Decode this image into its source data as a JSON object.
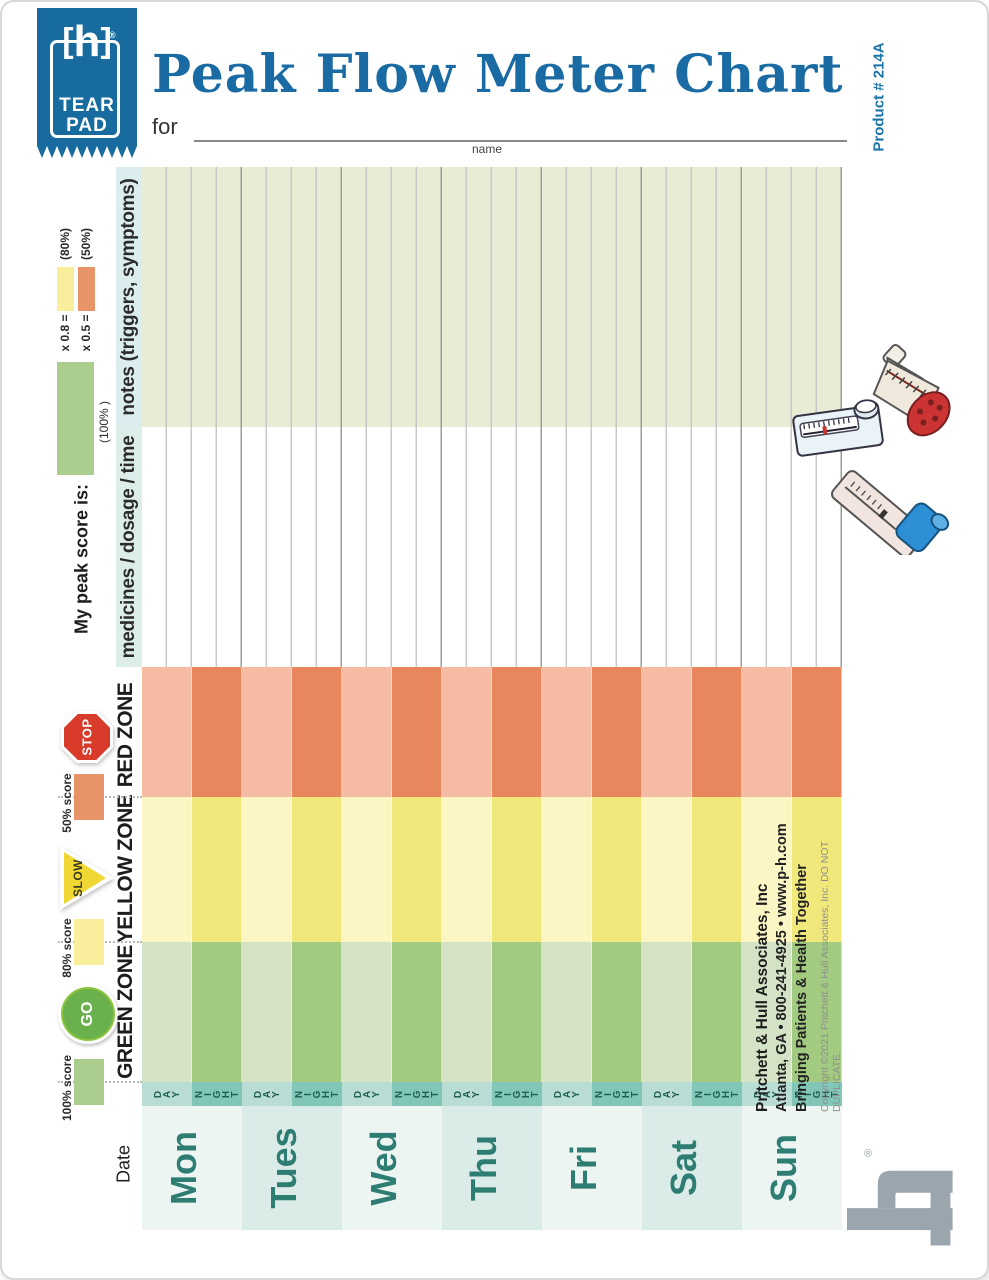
{
  "header": {
    "logo": {
      "mark": "h",
      "bracket_left": "[",
      "bracket_right": "]",
      "registered": "®",
      "word1": "TEAR",
      "word2": "PAD"
    },
    "title": "Peak Flow Meter Chart",
    "for_label": "for",
    "name_label": "name",
    "product_code": "Product # 214A"
  },
  "scale": {
    "peak_score_label": "My peak score is:",
    "hundred_pct_label": "(100% )",
    "hundred_swatch_color": "#abce8f",
    "formulas": [
      {
        "expr": "x 0.8 =",
        "pct": "(80%)",
        "color": "#f8ee9b"
      },
      {
        "expr": "x 0.5 =",
        "pct": "(50%)",
        "color": "#e79468"
      }
    ]
  },
  "chart": {
    "row_headers": {
      "notes": "notes (triggers, symptoms)",
      "medicines": "medicines / dosage / time"
    },
    "zones": [
      {
        "label": "RED ZONE",
        "icon_label": "STOP",
        "score_label": "50% score",
        "day_color": "#f6bba3",
        "night_color": "#e8875e",
        "swatch_color": "#e79468"
      },
      {
        "label": "YELLOW ZONE",
        "icon_label": "SLOW",
        "score_label": "80% score",
        "day_color": "#fbf6c4",
        "night_color": "#f1e87c",
        "swatch_color": "#f8ee9b"
      },
      {
        "label": "GREEN ZONE",
        "icon_label": "GO",
        "score_label": "100% score",
        "day_color": "#d4e3c6",
        "night_color": "#a2cb81",
        "swatch_color": "#abce8f"
      }
    ],
    "subcolumns": [
      "DAY",
      "NIGHT"
    ],
    "days": [
      "Mon",
      "Tues",
      "Wed",
      "Thu",
      "Fri",
      "Sat",
      "Sun"
    ],
    "date_label": "Date",
    "colors": {
      "notes_band": "#e9ecd5",
      "dn_day": "#b9dcd4",
      "dn_night": "#81c6b7",
      "day_cell_light": "#ecf5f2",
      "day_cell_dark": "#dbebe7"
    }
  },
  "footer": {
    "company": "Pritchett & Hull Associates, Inc",
    "contact": "Atlanta, GA • 800-241-4925 • www.p-h.com",
    "tagline": "Bringing Patients & Health Together",
    "copyright": "Copyright ©2021 Pritchett & Hull Associates, Inc. DO NOT DUPLICATE.",
    "registered": "®"
  }
}
